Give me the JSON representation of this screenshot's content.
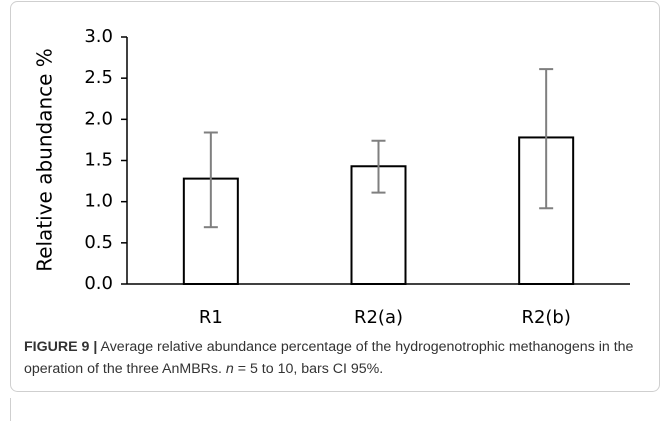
{
  "chart_data": {
    "type": "bar",
    "categories": [
      "R1",
      "R2(a)",
      "R2(b)"
    ],
    "values": [
      1.28,
      1.43,
      1.78
    ],
    "lower": [
      0.69,
      1.11,
      0.92
    ],
    "upper": [
      1.84,
      1.74,
      2.61
    ],
    "color": "#ffffff",
    "edge_color": "#000000",
    "error_color": "#7f7f7f",
    "ylabel": "Relative abundance %",
    "ylim": [
      0,
      3
    ],
    "yticks": [
      {
        "value": 0,
        "label": "0.0"
      },
      {
        "value": 0.5,
        "label": "0.5"
      },
      {
        "value": 1,
        "label": "1.0"
      },
      {
        "value": 1.5,
        "label": "1.5"
      },
      {
        "value": 2,
        "label": "2.0"
      },
      {
        "value": 2.5,
        "label": "2.5"
      },
      {
        "value": 3,
        "label": "3.0"
      }
    ],
    "grid": false,
    "caption": {
      "label": "FIGURE 9 |",
      "text_before": " Average relative abundance percentage of the hydrogenotrophic methanogens in the operation of the three AnMBRs. ",
      "italic": "n",
      "text_after": " = 5 to 10, bars CI 95%."
    }
  }
}
